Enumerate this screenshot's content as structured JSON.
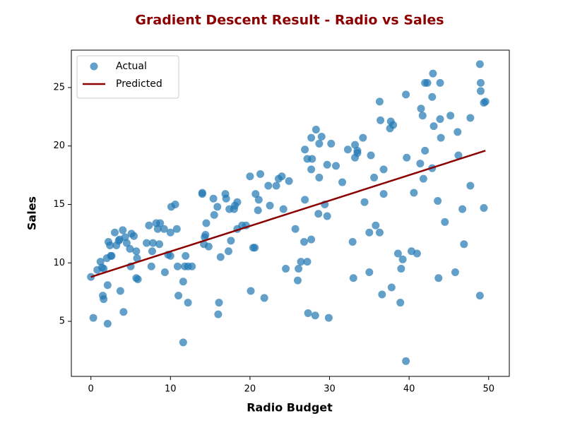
{
  "chart_data": {
    "type": "scatter",
    "title": "Gradient Descent Result - Radio vs Sales",
    "xlabel": "Radio Budget",
    "ylabel": "Sales",
    "xlim": [
      -2.46,
      52.6
    ],
    "ylim": [
      0.29,
      28.2
    ],
    "xticks": [
      0,
      10,
      20,
      30,
      40,
      50
    ],
    "yticks": [
      5,
      10,
      15,
      20,
      25
    ],
    "legend": "upper left",
    "series": [
      {
        "name": "Actual",
        "type": "scatter",
        "color": "#1f77b4",
        "x": [
          0,
          0.3,
          0.8,
          1.2,
          1.4,
          1.5,
          1.6,
          1.6,
          2,
          2.1,
          2.1,
          2.2,
          2.4,
          2.5,
          2.6,
          3,
          3.2,
          3.5,
          3.6,
          3.7,
          4,
          4.1,
          4.3,
          4.5,
          4.9,
          5,
          5.1,
          5.4,
          5.7,
          5.8,
          5.7,
          5.9,
          7,
          7.3,
          7.6,
          7.8,
          7.7,
          8.2,
          8.4,
          8.6,
          8.7,
          9.2,
          9.3,
          9.7,
          10,
          10,
          10.1,
          10.6,
          10.8,
          10.9,
          11,
          11.6,
          11.6,
          11.8,
          11.9,
          12.2,
          12.2,
          12.7,
          14,
          14,
          14.2,
          14.3,
          14.4,
          14.5,
          14.8,
          15.4,
          15.5,
          15.9,
          16,
          16.1,
          16.3,
          16.9,
          17,
          17.3,
          17.4,
          17.6,
          18,
          18.1,
          18.4,
          18.4,
          19,
          19.5,
          20,
          20.1,
          20.4,
          20.6,
          20.7,
          21,
          21.1,
          21.3,
          21.8,
          22.3,
          22.5,
          23.3,
          23.6,
          24,
          24.2,
          24.9,
          24.5,
          25.7,
          26,
          26.1,
          26.4,
          26.8,
          26.9,
          26.9,
          27.2,
          27.2,
          27.3,
          27.7,
          27.7,
          27.8,
          27.7,
          28.2,
          28.3,
          28.6,
          28.7,
          28.7,
          29,
          29.4,
          29.7,
          29.7,
          29.9,
          30.2,
          30.8,
          31.6,
          32.3,
          32.9,
          33,
          33.2,
          33.2,
          33.5,
          33.5,
          34.2,
          34.4,
          35,
          35,
          35.2,
          35.6,
          35.8,
          36.3,
          36.4,
          36.3,
          36.6,
          36.8,
          36.8,
          37.6,
          37.7,
          37.8,
          38,
          38.6,
          38.9,
          39,
          39.2,
          39.6,
          39.7,
          39.6,
          40.3,
          40.6,
          41,
          41.4,
          41.5,
          41.7,
          41.8,
          42,
          42,
          42.3,
          42.9,
          42.9,
          43,
          43.1,
          43.6,
          43.7,
          43.9,
          43.9,
          44,
          44.5,
          45.2,
          45.8,
          46.1,
          46.2,
          46.7,
          46.9,
          47.7,
          47.7,
          48.9,
          48.9,
          49,
          49,
          49.4,
          49.4,
          49.6
        ],
        "values": [
          8.8,
          5.3,
          9.4,
          10.1,
          9.6,
          7.2,
          6.9,
          9.5,
          10.4,
          4.8,
          8.1,
          11.8,
          11.5,
          10.6,
          10.6,
          12.6,
          11.5,
          11.9,
          12.0,
          7.6,
          12.8,
          5.8,
          12.2,
          11.7,
          11.2,
          9.7,
          12.5,
          12.3,
          11.0,
          10.4,
          8.7,
          8.6,
          11.7,
          13.2,
          9.7,
          11.7,
          11.0,
          13.4,
          12.9,
          11.6,
          13.4,
          12.9,
          9.2,
          10.7,
          10.6,
          12.6,
          14.8,
          15.0,
          12.9,
          9.7,
          7.2,
          3.2,
          8.4,
          9.7,
          10.6,
          6.6,
          9.7,
          9.7,
          16.0,
          15.9,
          11.6,
          12.2,
          12.4,
          13.4,
          11.4,
          15.5,
          14.1,
          14.8,
          5.6,
          6.6,
          10.5,
          15.9,
          15.5,
          11.0,
          14.6,
          11.9,
          14.6,
          14.9,
          15.2,
          12.9,
          13.2,
          13.2,
          17.4,
          7.6,
          11.3,
          11.3,
          15.9,
          14.5,
          15.4,
          17.6,
          7.0,
          16.6,
          14.9,
          16.6,
          17.2,
          17.4,
          14.6,
          17.0,
          9.5,
          12.9,
          8.5,
          9.5,
          10.1,
          11.8,
          15.4,
          19.7,
          10.1,
          18.9,
          5.7,
          12.0,
          18.0,
          18.9,
          20.7,
          5.5,
          21.4,
          14.2,
          17.3,
          20.2,
          20.8,
          15.0,
          18.4,
          14.0,
          5.3,
          20.2,
          18.3,
          16.9,
          19.7,
          11.8,
          8.7,
          19.0,
          20.1,
          19.6,
          19.4,
          20.7,
          15.2,
          12.6,
          9.2,
          19.2,
          17.3,
          13.2,
          23.8,
          22.2,
          12.6,
          7.3,
          18.0,
          15.9,
          21.5,
          22.1,
          7.9,
          21.8,
          10.8,
          6.6,
          9.5,
          10.3,
          24.4,
          19.0,
          1.6,
          11.0,
          16.0,
          10.8,
          18.5,
          23.2,
          22.6,
          17.2,
          19.6,
          25.4,
          25.4,
          24.2,
          18.1,
          26.2,
          21.7,
          15.3,
          8.7,
          25.4,
          22.3,
          20.7,
          13.5,
          22.6,
          9.2,
          21.2,
          19.2,
          14.6,
          11.6,
          22.4,
          16.6,
          7.2,
          27.0,
          25.4,
          24.7,
          23.7,
          14.7,
          23.8
        ]
      },
      {
        "name": "Predicted",
        "type": "line",
        "color": "#8b0000",
        "x": [
          0,
          49.6
        ],
        "values": [
          8.8,
          19.6
        ]
      }
    ]
  }
}
